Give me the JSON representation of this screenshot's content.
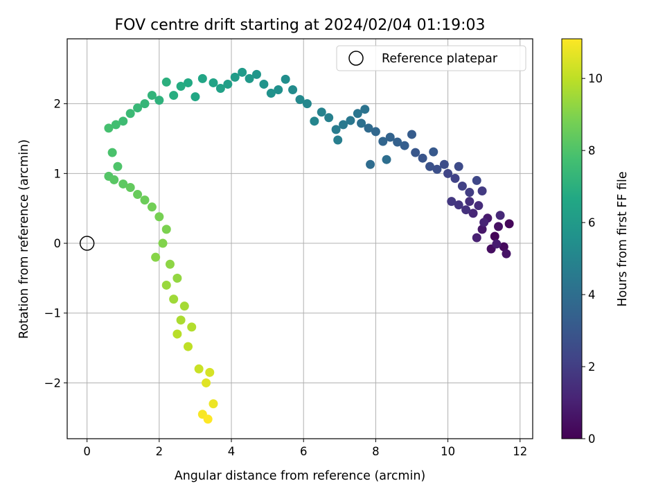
{
  "chart_data": {
    "type": "scatter",
    "title": "FOV centre drift starting at 2024/02/04 01:19:03",
    "xlabel": "Angular distance from reference (arcmin)",
    "ylabel": "Rotation from reference (arcmin)",
    "xlim": [
      -0.55,
      12.35
    ],
    "ylim": [
      -2.8,
      2.93
    ],
    "xticks": [
      0,
      2,
      4,
      6,
      8,
      10,
      12
    ],
    "yticks": [
      -2,
      -1,
      0,
      1,
      2
    ],
    "xtick_labels": [
      "0",
      "2",
      "4",
      "6",
      "8",
      "10",
      "12"
    ],
    "ytick_labels": [
      "−2",
      "−1",
      "0",
      "1",
      "2"
    ],
    "grid": true,
    "legend": {
      "placement": "upper-right",
      "entries": [
        "Reference platepar"
      ]
    },
    "reference_point": {
      "x": 0,
      "y": 0
    },
    "colorbar": {
      "label": "Hours from first FF file",
      "colormap": "viridis",
      "range": [
        0,
        11.1
      ],
      "ticks": [
        0,
        2,
        4,
        6,
        8,
        10
      ],
      "tick_labels": [
        "0",
        "2",
        "4",
        "6",
        "8",
        "10"
      ]
    },
    "points": [
      [
        11.3,
        0.1,
        0.1
      ],
      [
        11.7,
        0.28,
        0.2
      ],
      [
        11.55,
        -0.05,
        0.3
      ],
      [
        11.2,
        -0.08,
        0.4
      ],
      [
        11.4,
        0.24,
        0.5
      ],
      [
        11.62,
        -0.15,
        0.6
      ],
      [
        10.95,
        0.2,
        0.7
      ],
      [
        11.1,
        0.36,
        0.8
      ],
      [
        11.35,
        -0.01,
        0.9
      ],
      [
        10.8,
        0.08,
        1.0
      ],
      [
        11.0,
        0.3,
        1.1
      ],
      [
        10.7,
        0.43,
        1.2
      ],
      [
        11.45,
        0.4,
        1.3
      ],
      [
        10.85,
        0.54,
        1.4
      ],
      [
        10.6,
        0.6,
        1.5
      ],
      [
        10.5,
        0.48,
        1.6
      ],
      [
        10.3,
        0.55,
        1.7
      ],
      [
        10.1,
        0.6,
        1.8
      ],
      [
        10.95,
        0.75,
        1.9
      ],
      [
        10.6,
        0.73,
        2.0
      ],
      [
        10.4,
        0.82,
        2.1
      ],
      [
        10.2,
        0.93,
        2.2
      ],
      [
        10.0,
        1.0,
        2.3
      ],
      [
        10.8,
        0.9,
        2.4
      ],
      [
        10.3,
        1.1,
        2.5
      ],
      [
        9.9,
        1.13,
        2.6
      ],
      [
        9.7,
        1.06,
        2.7
      ],
      [
        9.5,
        1.1,
        2.8
      ],
      [
        9.3,
        1.22,
        2.9
      ],
      [
        9.1,
        1.3,
        3.0
      ],
      [
        9.6,
        1.31,
        3.1
      ],
      [
        9.0,
        1.56,
        3.2
      ],
      [
        8.8,
        1.4,
        3.3
      ],
      [
        8.6,
        1.45,
        3.4
      ],
      [
        8.4,
        1.52,
        3.5
      ],
      [
        8.2,
        1.46,
        3.6
      ],
      [
        8.0,
        1.6,
        3.7
      ],
      [
        7.8,
        1.65,
        3.8
      ],
      [
        7.85,
        1.13,
        3.9
      ],
      [
        8.3,
        1.2,
        4.0
      ],
      [
        7.6,
        1.72,
        4.1
      ],
      [
        7.7,
        1.92,
        4.2
      ],
      [
        7.5,
        1.86,
        4.3
      ],
      [
        7.3,
        1.76,
        4.4
      ],
      [
        7.1,
        1.7,
        4.5
      ],
      [
        6.9,
        1.63,
        4.6
      ],
      [
        6.95,
        1.48,
        4.7
      ],
      [
        6.7,
        1.8,
        4.8
      ],
      [
        6.5,
        1.88,
        4.9
      ],
      [
        6.3,
        1.75,
        5.0
      ],
      [
        6.1,
        2.0,
        5.1
      ],
      [
        5.9,
        2.06,
        5.2
      ],
      [
        5.7,
        2.2,
        5.3
      ],
      [
        5.5,
        2.35,
        5.4
      ],
      [
        5.3,
        2.2,
        5.5
      ],
      [
        5.1,
        2.15,
        5.6
      ],
      [
        4.9,
        2.28,
        5.7
      ],
      [
        4.7,
        2.42,
        5.8
      ],
      [
        4.5,
        2.36,
        5.9
      ],
      [
        4.3,
        2.45,
        6.0
      ],
      [
        4.1,
        2.38,
        6.1
      ],
      [
        3.9,
        2.28,
        6.2
      ],
      [
        3.7,
        2.22,
        6.3
      ],
      [
        3.5,
        2.3,
        6.4
      ],
      [
        3.2,
        2.36,
        6.5
      ],
      [
        3.0,
        2.1,
        6.6
      ],
      [
        2.8,
        2.3,
        6.7
      ],
      [
        2.6,
        2.25,
        6.8
      ],
      [
        2.4,
        2.12,
        6.9
      ],
      [
        2.2,
        2.31,
        7.0
      ],
      [
        2.0,
        2.05,
        7.1
      ],
      [
        1.8,
        2.12,
        7.2
      ],
      [
        1.6,
        2.0,
        7.3
      ],
      [
        1.4,
        1.94,
        7.4
      ],
      [
        1.2,
        1.86,
        7.5
      ],
      [
        1.0,
        1.75,
        7.6
      ],
      [
        0.8,
        1.7,
        7.7
      ],
      [
        0.6,
        1.65,
        7.8
      ],
      [
        0.7,
        1.3,
        7.9
      ],
      [
        0.85,
        1.1,
        8.0
      ],
      [
        0.6,
        0.96,
        8.1
      ],
      [
        0.75,
        0.91,
        8.2
      ],
      [
        1.0,
        0.85,
        8.3
      ],
      [
        1.2,
        0.8,
        8.4
      ],
      [
        1.4,
        0.7,
        8.5
      ],
      [
        1.6,
        0.62,
        8.6
      ],
      [
        1.8,
        0.52,
        8.7
      ],
      [
        2.0,
        0.38,
        8.8
      ],
      [
        2.2,
        0.2,
        8.9
      ],
      [
        2.1,
        0.0,
        9.0
      ],
      [
        1.9,
        -0.2,
        9.1
      ],
      [
        2.3,
        -0.3,
        9.2
      ],
      [
        2.5,
        -0.5,
        9.3
      ],
      [
        2.2,
        -0.6,
        9.4
      ],
      [
        2.4,
        -0.8,
        9.5
      ],
      [
        2.7,
        -0.9,
        9.6
      ],
      [
        2.6,
        -1.1,
        9.7
      ],
      [
        2.9,
        -1.2,
        9.8
      ],
      [
        2.5,
        -1.3,
        9.9
      ],
      [
        2.8,
        -1.48,
        10.0
      ],
      [
        3.1,
        -1.8,
        10.2
      ],
      [
        3.4,
        -1.85,
        10.4
      ],
      [
        3.3,
        -2.0,
        10.6
      ],
      [
        3.5,
        -2.3,
        10.8
      ],
      [
        3.2,
        -2.45,
        11.0
      ],
      [
        3.35,
        -2.52,
        11.1
      ]
    ]
  }
}
